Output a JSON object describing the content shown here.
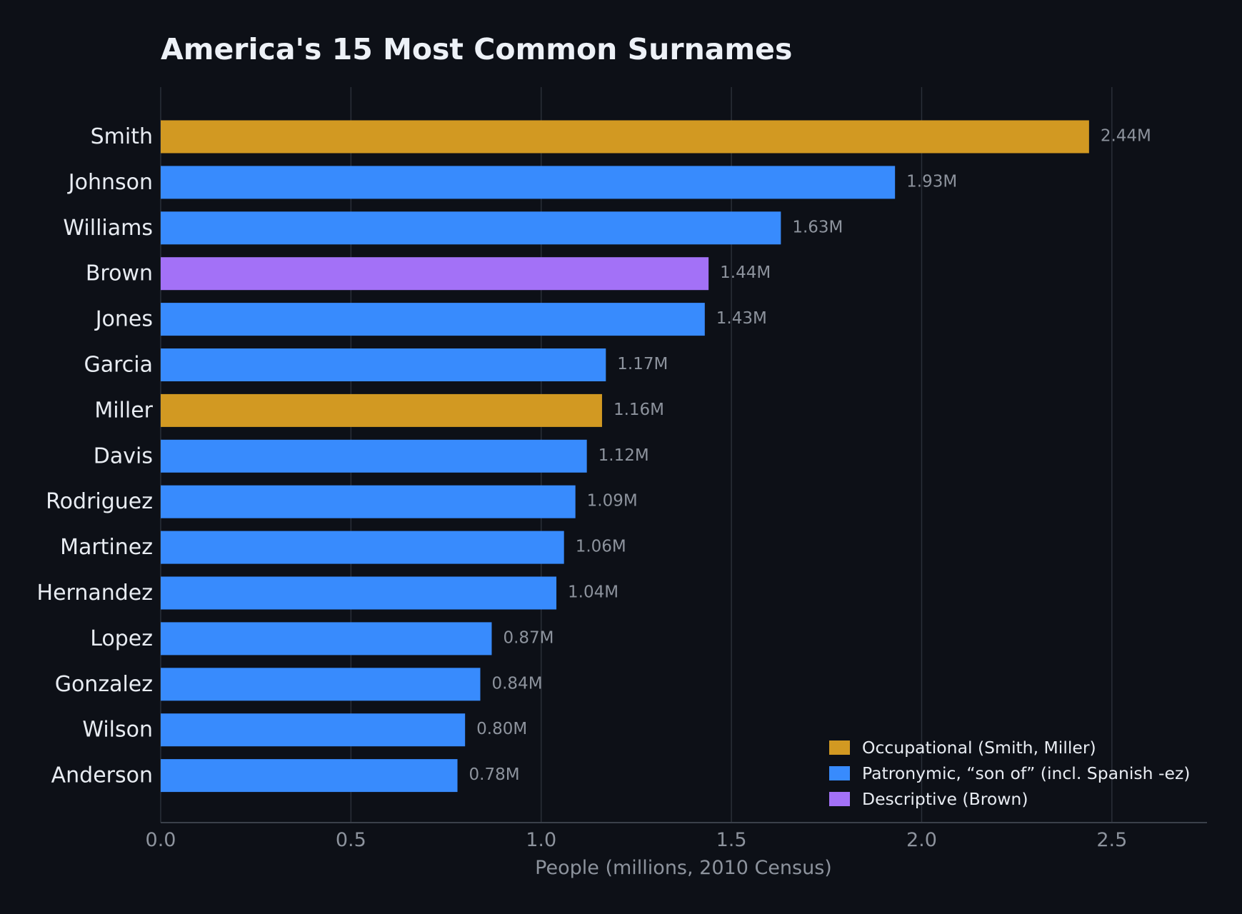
{
  "chart_data": {
    "type": "bar",
    "orientation": "horizontal",
    "title": "America's 15 Most Common Surnames",
    "xlabel": "People (millions, 2010 Census)",
    "ylabel": "",
    "xlim": [
      0,
      2.75
    ],
    "xticks": [
      0.0,
      0.5,
      1.0,
      1.5,
      2.0,
      2.5
    ],
    "xtick_labels": [
      "0.0",
      "0.5",
      "1.0",
      "1.5",
      "2.0",
      "2.5"
    ],
    "grid": "vertical",
    "legend_position": "bottom-right",
    "bars": [
      {
        "name": "Smith",
        "value": 2.44,
        "label": "2.44M",
        "group": "occupational"
      },
      {
        "name": "Johnson",
        "value": 1.93,
        "label": "1.93M",
        "group": "patronymic"
      },
      {
        "name": "Williams",
        "value": 1.63,
        "label": "1.63M",
        "group": "patronymic"
      },
      {
        "name": "Brown",
        "value": 1.44,
        "label": "1.44M",
        "group": "descriptive"
      },
      {
        "name": "Jones",
        "value": 1.43,
        "label": "1.43M",
        "group": "patronymic"
      },
      {
        "name": "Garcia",
        "value": 1.17,
        "label": "1.17M",
        "group": "patronymic"
      },
      {
        "name": "Miller",
        "value": 1.16,
        "label": "1.16M",
        "group": "occupational"
      },
      {
        "name": "Davis",
        "value": 1.12,
        "label": "1.12M",
        "group": "patronymic"
      },
      {
        "name": "Rodriguez",
        "value": 1.09,
        "label": "1.09M",
        "group": "patronymic"
      },
      {
        "name": "Martinez",
        "value": 1.06,
        "label": "1.06M",
        "group": "patronymic"
      },
      {
        "name": "Hernandez",
        "value": 1.04,
        "label": "1.04M",
        "group": "patronymic"
      },
      {
        "name": "Lopez",
        "value": 0.87,
        "label": "0.87M",
        "group": "patronymic"
      },
      {
        "name": "Gonzalez",
        "value": 0.84,
        "label": "0.84M",
        "group": "patronymic"
      },
      {
        "name": "Wilson",
        "value": 0.8,
        "label": "0.80M",
        "group": "patronymic"
      },
      {
        "name": "Anderson",
        "value": 0.78,
        "label": "0.78M",
        "group": "patronymic"
      }
    ],
    "legend": [
      {
        "key": "occupational",
        "label": "Occupational (Smith, Miller)",
        "color": "#d29922"
      },
      {
        "key": "patronymic",
        "label": "Patronymic, “son of” (incl. Spanish -ez)",
        "color": "#388bfd"
      },
      {
        "key": "descriptive",
        "label": "Descriptive (Brown)",
        "color": "#a371f7"
      }
    ]
  },
  "colors": {
    "background": "#0d1017",
    "grid": "#2a2f38",
    "axis": "#3a404a",
    "title_text": "#edf1f7",
    "label_text": "#e8ecf2",
    "muted_text": "#8d939d"
  }
}
